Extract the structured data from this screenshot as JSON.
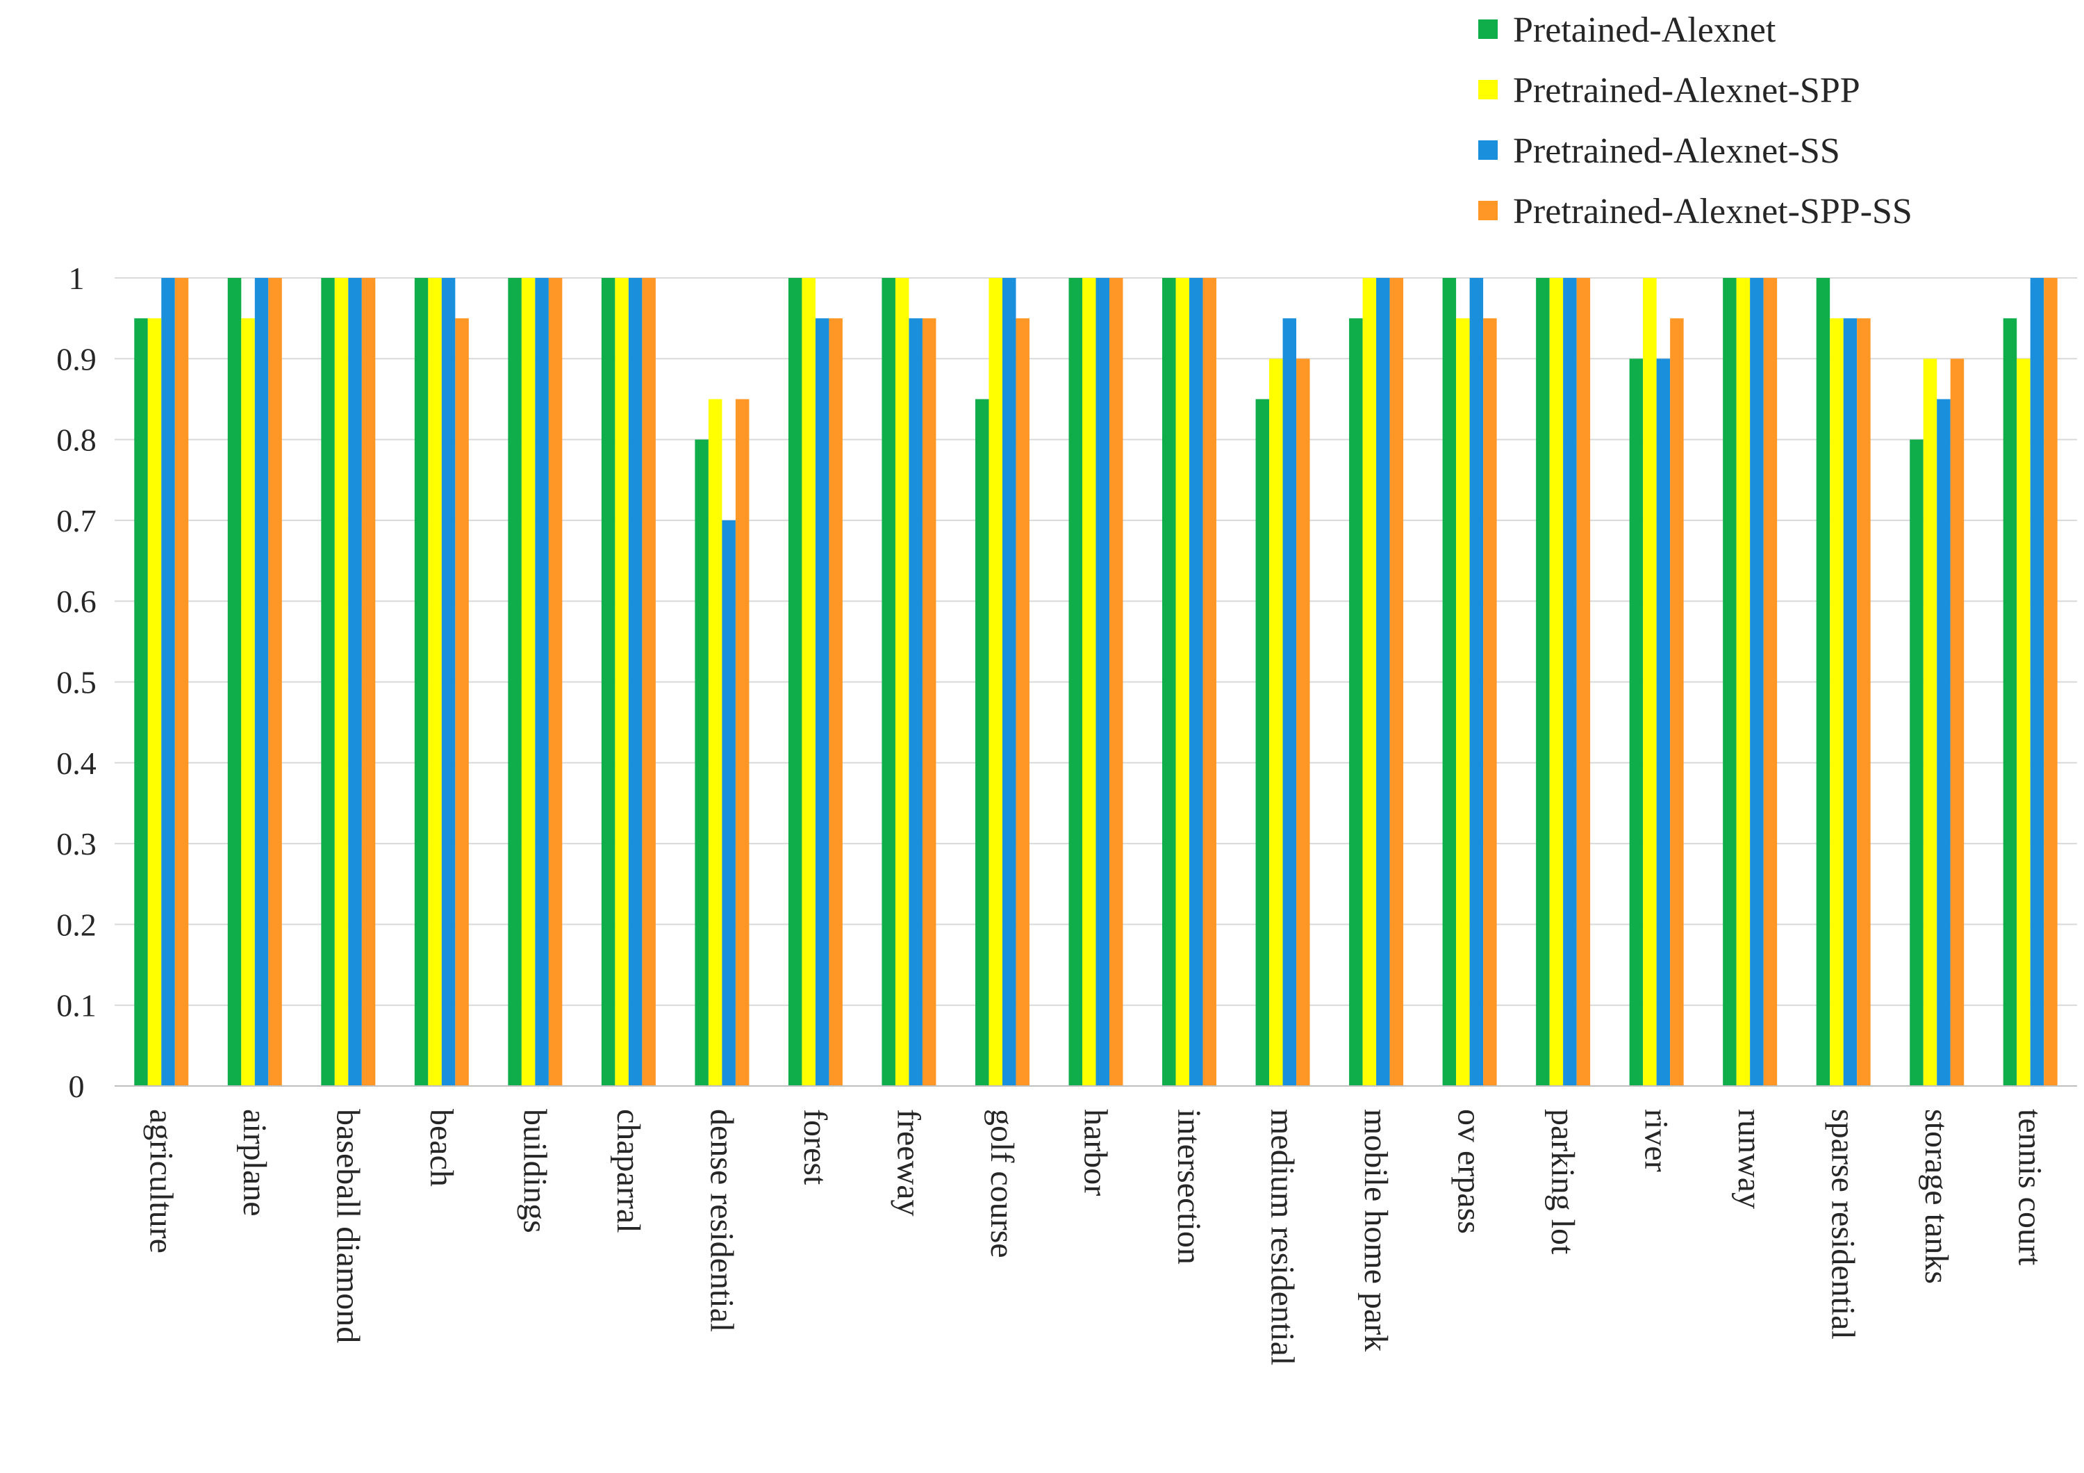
{
  "chart_data": {
    "type": "bar",
    "title": "",
    "xlabel": "",
    "ylabel": "",
    "ylim": [
      0,
      1
    ],
    "yticks": [
      "0",
      "0.1",
      "0.2",
      "0.3",
      "0.4",
      "0.5",
      "0.6",
      "0.7",
      "0.8",
      "0.9",
      "1"
    ],
    "grid": true,
    "legend_position": "top-right",
    "categories": [
      "agriculture",
      "airplane",
      "baseball diamond",
      "beach",
      "buildings",
      "chaparral",
      "dense residential",
      "forest",
      "freeway",
      "golf course",
      "harbor",
      "intersection",
      "medium residential",
      "mobile home park",
      "ov erpass",
      "parking lot",
      "river",
      "runway",
      "sparse residential",
      "storage tanks",
      "tennis court"
    ],
    "series": [
      {
        "name": "Pretained-Alexnet",
        "color": "#0fae4b",
        "values": [
          0.95,
          1,
          1,
          1,
          1,
          1,
          0.8,
          1,
          1,
          0.85,
          1,
          1,
          0.85,
          0.95,
          1,
          1,
          0.9,
          1,
          1,
          0.8,
          0.95
        ]
      },
      {
        "name": "Pretrained-Alexnet-SPP",
        "color": "#ffff00",
        "values": [
          0.95,
          0.95,
          1,
          1,
          1,
          1,
          0.85,
          1,
          1,
          1,
          1,
          1,
          0.9,
          1,
          0.95,
          1,
          1,
          1,
          0.95,
          0.9,
          0.9
        ]
      },
      {
        "name": "Pretrained-Alexnet-SS",
        "color": "#1a8fdc",
        "values": [
          1,
          1,
          1,
          1,
          1,
          1,
          0.7,
          0.95,
          0.95,
          1,
          1,
          1,
          0.95,
          1,
          1,
          1,
          0.9,
          1,
          0.95,
          0.85,
          1
        ]
      },
      {
        "name": "Pretrained-Alexnet-SPP-SS",
        "color": "#ff9727",
        "values": [
          1,
          1,
          1,
          0.95,
          1,
          1,
          0.85,
          0.95,
          0.95,
          0.95,
          1,
          1,
          0.9,
          1,
          0.95,
          1,
          0.95,
          1,
          0.95,
          0.9,
          1
        ]
      }
    ]
  }
}
